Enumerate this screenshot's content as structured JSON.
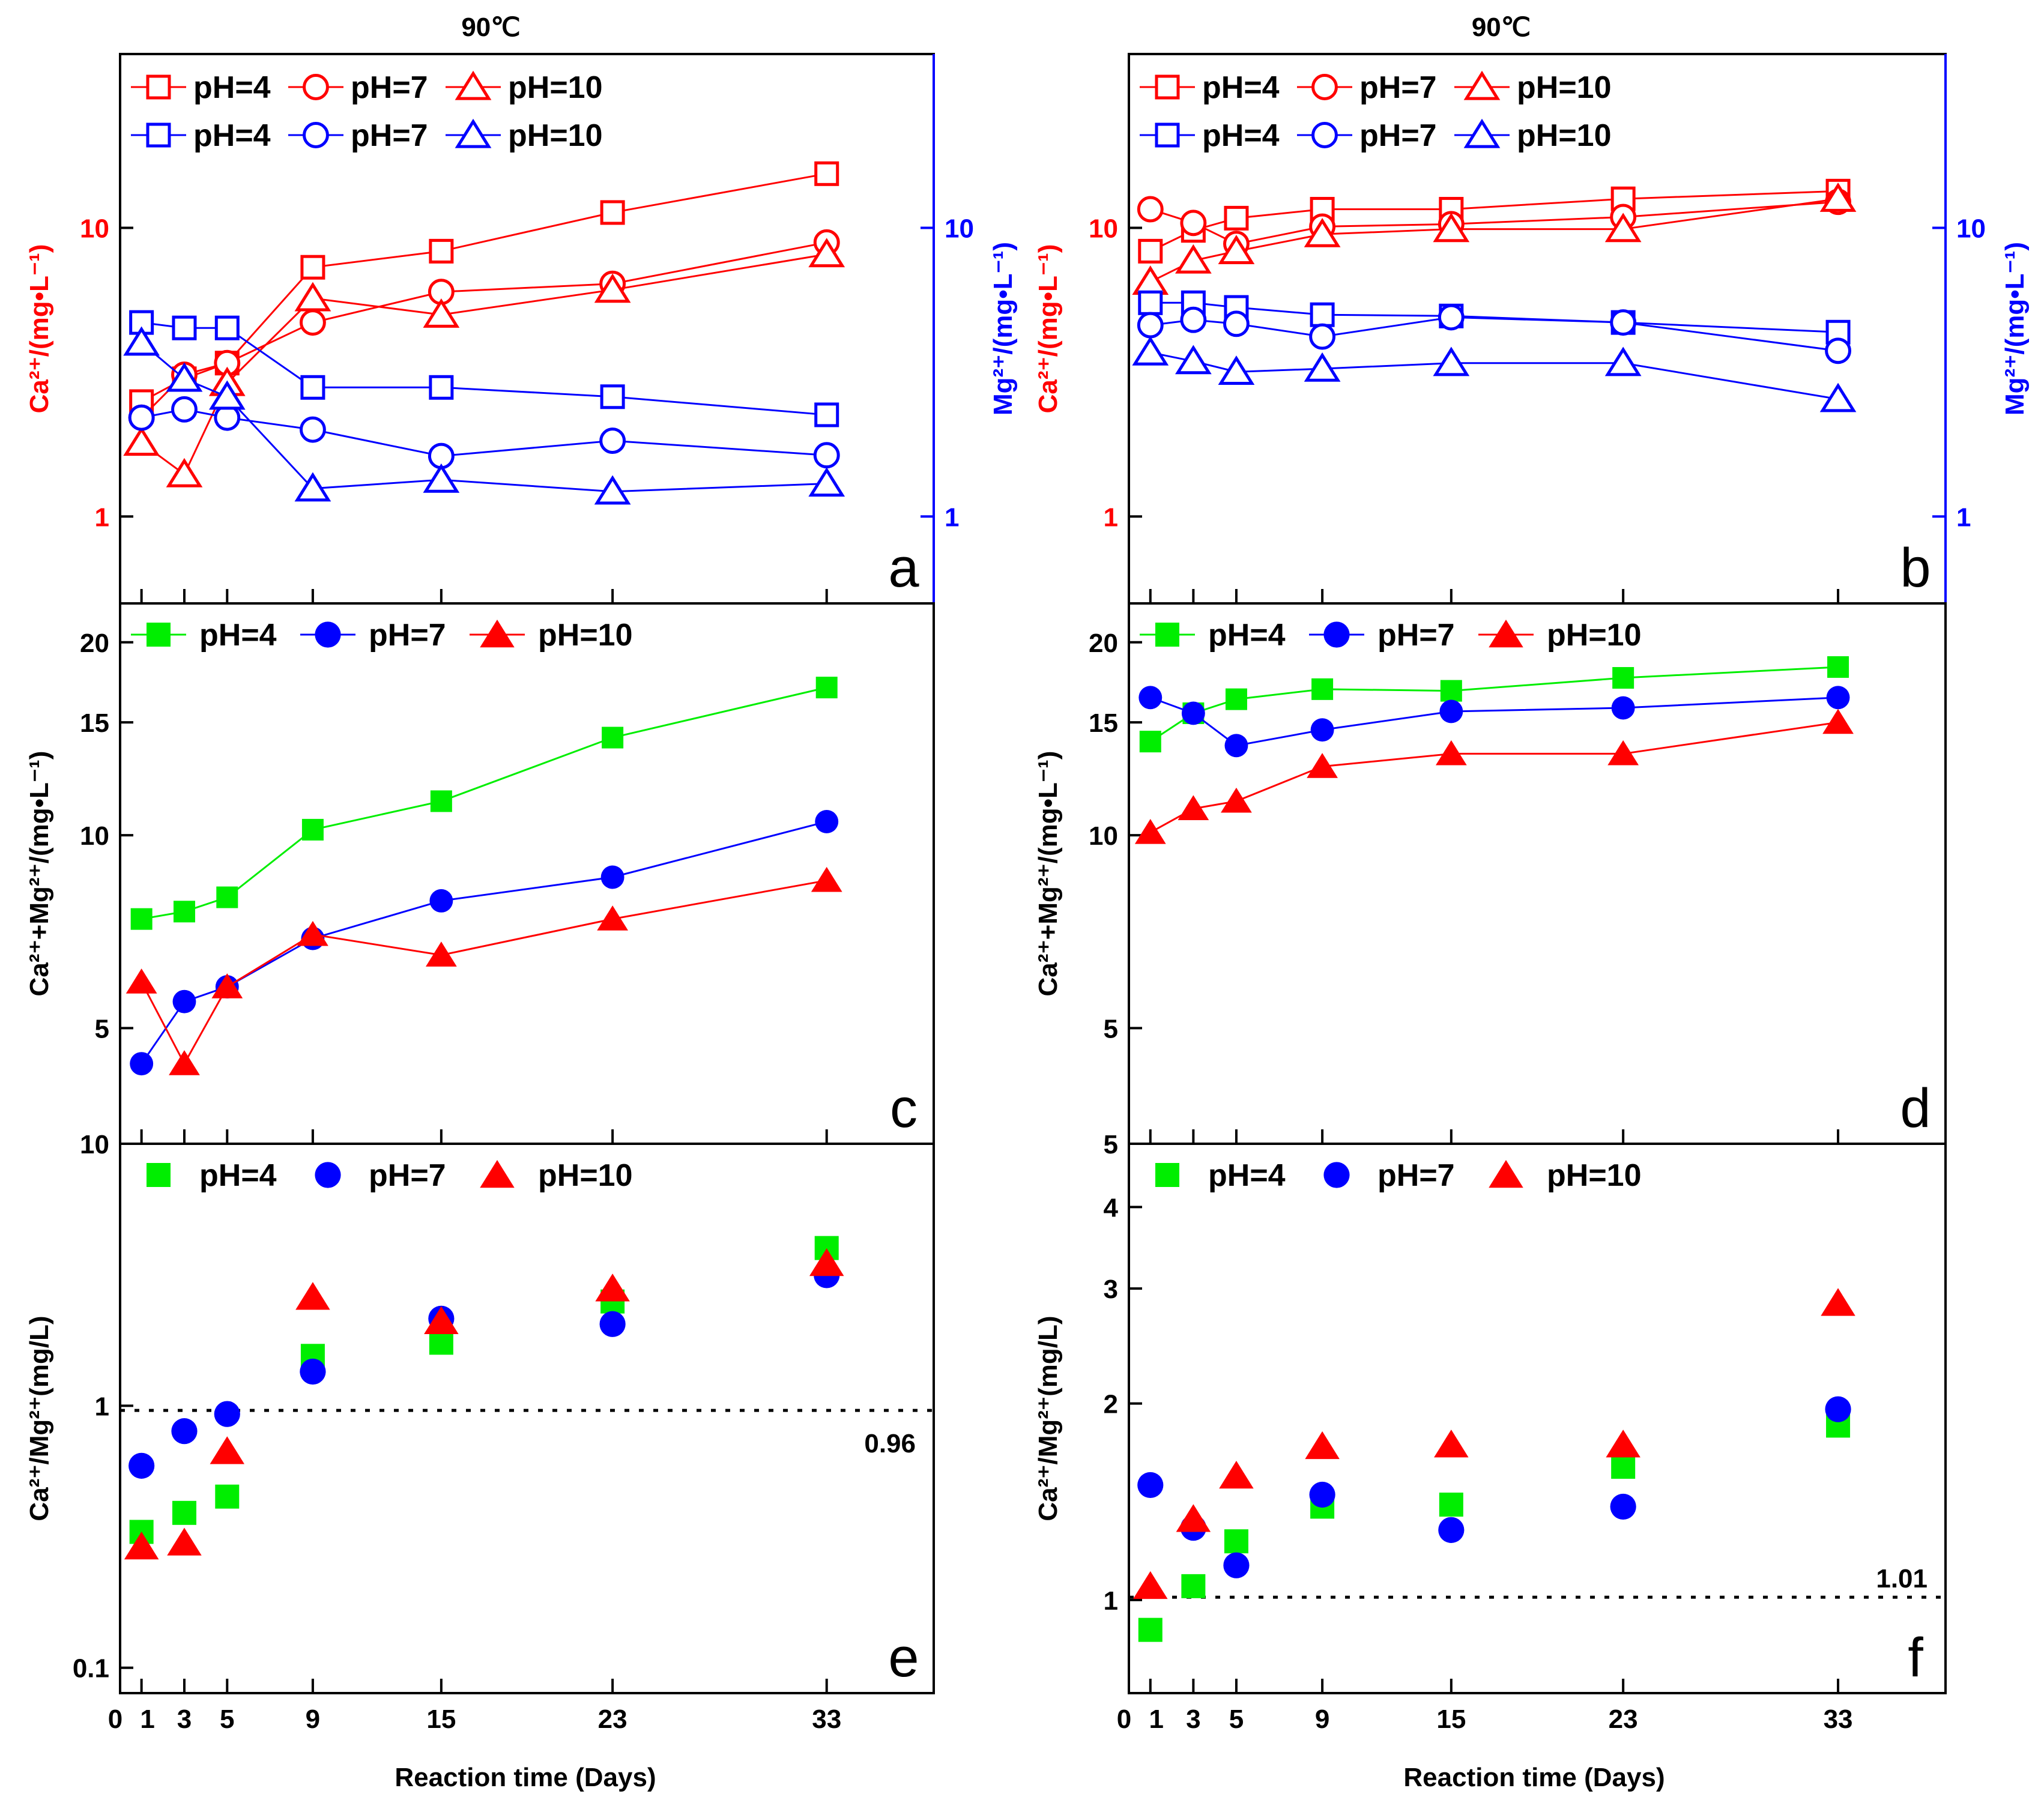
{
  "figure": {
    "x_axis": {
      "label": "Reaction time (Days)",
      "tick_labels": [
        "0",
        "1",
        "3",
        "5",
        "9",
        "15",
        "23",
        "33"
      ]
    },
    "colors": {
      "red": "#ff0000",
      "blue": "#0000ff",
      "green": "#00ee00",
      "black": "#000000"
    }
  },
  "chart_data": [
    {
      "id": "a",
      "type": "line",
      "title": "90℃",
      "panel_label": "a",
      "xlim": [
        0,
        38
      ],
      "ylim_log": [
        0.5,
        40
      ],
      "y2lim_log": [
        0.5,
        40
      ],
      "ylabel_left": "Ca²⁺/(mg•L⁻¹)",
      "ylabel_right": "Mg²⁺/(mg•L⁻¹)",
      "y_ticks": [
        "1",
        "10"
      ],
      "legend": [
        {
          "label": "pH=4",
          "marker": "square",
          "color": "#ff0000"
        },
        {
          "label": "pH=7",
          "marker": "circle",
          "color": "#ff0000"
        },
        {
          "label": "pH=10",
          "marker": "triangle",
          "color": "#ff0000"
        },
        {
          "label": "pH=4",
          "marker": "square",
          "color": "#0000ff"
        },
        {
          "label": "pH=7",
          "marker": "circle",
          "color": "#0000ff"
        },
        {
          "label": "pH=10",
          "marker": "triangle",
          "color": "#0000ff"
        }
      ],
      "x": [
        1,
        3,
        5,
        9,
        15,
        23,
        33
      ],
      "series": [
        {
          "name": "Ca pH=4",
          "axis": "left",
          "color": "#ff0000",
          "marker": "square",
          "filled": false,
          "values": [
            2.5,
            3.0,
            3.4,
            7.3,
            8.3,
            11.3,
            15.4
          ]
        },
        {
          "name": "Ca pH=7",
          "axis": "left",
          "color": "#ff0000",
          "marker": "circle",
          "filled": false,
          "values": [
            2.2,
            3.1,
            3.4,
            4.7,
            6.0,
            6.4,
            8.9
          ]
        },
        {
          "name": "Ca pH=10",
          "axis": "left",
          "color": "#ff0000",
          "marker": "triangle",
          "filled": false,
          "values": [
            1.8,
            1.4,
            2.9,
            5.7,
            5.0,
            6.1,
            8.1
          ]
        },
        {
          "name": "Mg pH=4",
          "axis": "right",
          "color": "#0000ff",
          "marker": "square",
          "filled": false,
          "values": [
            4.7,
            4.5,
            4.5,
            2.8,
            2.8,
            2.6,
            2.25
          ]
        },
        {
          "name": "Mg pH=7",
          "axis": "right",
          "color": "#0000ff",
          "marker": "circle",
          "filled": false,
          "values": [
            2.2,
            2.35,
            2.2,
            2.0,
            1.62,
            1.83,
            1.63
          ]
        },
        {
          "name": "Mg pH=10",
          "axis": "right",
          "color": "#0000ff",
          "marker": "triangle",
          "filled": false,
          "values": [
            4.0,
            3.0,
            2.6,
            1.25,
            1.34,
            1.22,
            1.3
          ]
        }
      ]
    },
    {
      "id": "b",
      "type": "line",
      "title": "90℃",
      "panel_label": "b",
      "xlim": [
        0,
        38
      ],
      "ylim_log": [
        0.5,
        40
      ],
      "y2lim_log": [
        0.5,
        40
      ],
      "ylabel_left": "Ca²⁺/(mg•L⁻¹)",
      "ylabel_right": "Mg²⁺/(mg•L⁻¹)",
      "y_ticks": [
        "1",
        "10"
      ],
      "legend": [
        {
          "label": "pH=4",
          "marker": "square",
          "color": "#ff0000"
        },
        {
          "label": "pH=7",
          "marker": "circle",
          "color": "#ff0000"
        },
        {
          "label": "pH=10",
          "marker": "triangle",
          "color": "#ff0000"
        },
        {
          "label": "pH=4",
          "marker": "square",
          "color": "#0000ff"
        },
        {
          "label": "pH=7",
          "marker": "circle",
          "color": "#0000ff"
        },
        {
          "label": "pH=10",
          "marker": "triangle",
          "color": "#0000ff"
        }
      ],
      "x": [
        1,
        3,
        5,
        9,
        15,
        23,
        33
      ],
      "series": [
        {
          "name": "Ca pH=4",
          "axis": "left",
          "color": "#ff0000",
          "marker": "square",
          "filled": false,
          "values": [
            8.3,
            9.8,
            10.8,
            11.6,
            11.6,
            12.6,
            13.4
          ]
        },
        {
          "name": "Ca pH=7",
          "axis": "left",
          "color": "#ff0000",
          "marker": "circle",
          "filled": false,
          "values": [
            11.6,
            10.4,
            8.8,
            10.1,
            10.3,
            10.9,
            12.3
          ]
        },
        {
          "name": "Ca pH=10",
          "axis": "left",
          "color": "#ff0000",
          "marker": "triangle",
          "filled": false,
          "values": [
            6.5,
            7.7,
            8.3,
            9.5,
            9.9,
            9.9,
            12.6
          ]
        },
        {
          "name": "Mg pH=4",
          "axis": "right",
          "color": "#0000ff",
          "marker": "square",
          "filled": false,
          "values": [
            5.5,
            5.5,
            5.3,
            5.0,
            4.95,
            4.7,
            4.35
          ]
        },
        {
          "name": "Mg pH=7",
          "axis": "right",
          "color": "#0000ff",
          "marker": "circle",
          "filled": false,
          "values": [
            4.6,
            4.8,
            4.65,
            4.2,
            4.9,
            4.7,
            3.75
          ]
        },
        {
          "name": "Mg pH=10",
          "axis": "right",
          "color": "#0000ff",
          "marker": "triangle",
          "filled": false,
          "values": [
            3.7,
            3.45,
            3.17,
            3.25,
            3.4,
            3.4,
            2.55
          ]
        }
      ]
    },
    {
      "id": "c",
      "type": "line",
      "panel_label": "c",
      "xlim": [
        0,
        38
      ],
      "ylim_log": [
        3.3,
        23
      ],
      "ylabel_left": "Ca²⁺+Mg²⁺/(mg•L⁻¹)",
      "y_ticks": [
        "5",
        "10",
        "15",
        "20"
      ],
      "y_bottom_label": "10",
      "legend": [
        {
          "label": "pH=4",
          "marker": "square",
          "color": "#00ee00"
        },
        {
          "label": "pH=7",
          "marker": "circle",
          "color": "#0000ff"
        },
        {
          "label": "pH=10",
          "marker": "triangle",
          "color": "#ff0000"
        }
      ],
      "x": [
        1,
        3,
        5,
        9,
        15,
        23,
        33
      ],
      "series": [
        {
          "name": "pH=4",
          "color": "#00ee00",
          "marker": "square",
          "filled": true,
          "values": [
            7.4,
            7.6,
            8.0,
            10.2,
            11.3,
            14.2,
            17.0
          ]
        },
        {
          "name": "pH=7",
          "color": "#0000ff",
          "marker": "circle",
          "filled": true,
          "values": [
            4.4,
            5.5,
            5.8,
            6.9,
            7.9,
            8.6,
            10.5
          ]
        },
        {
          "name": "pH=10",
          "color": "#ff0000",
          "marker": "triangle",
          "filled": true,
          "values": [
            5.9,
            4.4,
            5.8,
            7.0,
            6.5,
            7.4,
            8.5
          ]
        }
      ]
    },
    {
      "id": "d",
      "type": "line",
      "panel_label": "d",
      "xlim": [
        0,
        38
      ],
      "ylim_log": [
        3.3,
        23
      ],
      "ylabel_left": "Ca²⁺+Mg²⁺/(mg•L⁻¹)",
      "y_ticks": [
        "5",
        "10",
        "15",
        "20"
      ],
      "y_bottom_label": "5",
      "legend": [
        {
          "label": "pH=4",
          "marker": "square",
          "color": "#00ee00"
        },
        {
          "label": "pH=7",
          "marker": "circle",
          "color": "#0000ff"
        },
        {
          "label": "pH=10",
          "marker": "triangle",
          "color": "#ff0000"
        }
      ],
      "x": [
        1,
        3,
        5,
        9,
        15,
        23,
        33
      ],
      "series": [
        {
          "name": "pH=4",
          "color": "#00ee00",
          "marker": "square",
          "filled": true,
          "values": [
            14.0,
            15.5,
            16.3,
            16.9,
            16.8,
            17.6,
            18.3
          ]
        },
        {
          "name": "pH=7",
          "color": "#0000ff",
          "marker": "circle",
          "filled": true,
          "values": [
            16.4,
            15.5,
            13.8,
            14.6,
            15.6,
            15.8,
            16.4
          ]
        },
        {
          "name": "pH=10",
          "color": "#ff0000",
          "marker": "triangle",
          "filled": true,
          "values": [
            10.1,
            11.0,
            11.3,
            12.8,
            13.4,
            13.4,
            15.0
          ]
        }
      ]
    },
    {
      "id": "e",
      "type": "scatter",
      "panel_label": "e",
      "xlim": [
        0,
        38
      ],
      "ylim_log": [
        0.08,
        10
      ],
      "ylabel_left": "Ca²⁺/Mg²⁺(mg/L)",
      "y_ticks": [
        "0.1",
        "1"
      ],
      "reference_line": {
        "value": 0.96,
        "label": "0.96"
      },
      "legend": [
        {
          "label": "pH=4",
          "marker": "square",
          "color": "#00ee00"
        },
        {
          "label": "pH=7",
          "marker": "circle",
          "color": "#0000ff"
        },
        {
          "label": "pH=10",
          "marker": "triangle",
          "color": "#ff0000"
        }
      ],
      "x": [
        1,
        3,
        5,
        9,
        15,
        23,
        33
      ],
      "series": [
        {
          "name": "pH=4",
          "color": "#00ee00",
          "marker": "square",
          "filled": true,
          "values": [
            0.33,
            0.39,
            0.45,
            1.55,
            1.74,
            2.5,
            4.0
          ]
        },
        {
          "name": "pH=7",
          "color": "#0000ff",
          "marker": "circle",
          "filled": true,
          "values": [
            0.59,
            0.8,
            0.93,
            1.35,
            2.15,
            2.05,
            3.15
          ]
        },
        {
          "name": "pH=10",
          "color": "#ff0000",
          "marker": "triangle",
          "filled": true,
          "values": [
            0.29,
            0.3,
            0.67,
            2.6,
            2.1,
            2.8,
            3.5
          ]
        }
      ]
    },
    {
      "id": "f",
      "type": "scatter",
      "panel_label": "f",
      "xlim": [
        0,
        38
      ],
      "ylim_log": [
        0.72,
        5
      ],
      "ylabel_left": "Ca²⁺/Mg²⁺(mg/L)",
      "y_ticks": [
        "1",
        "2",
        "3",
        "4"
      ],
      "reference_line": {
        "value": 1.01,
        "label": "1.01"
      },
      "legend": [
        {
          "label": "pH=4",
          "marker": "square",
          "color": "#00ee00"
        },
        {
          "label": "pH=7",
          "marker": "circle",
          "color": "#0000ff"
        },
        {
          "label": "pH=10",
          "marker": "triangle",
          "color": "#ff0000"
        }
      ],
      "x": [
        1,
        3,
        5,
        9,
        15,
        23,
        33
      ],
      "series": [
        {
          "name": "pH=4",
          "color": "#00ee00",
          "marker": "square",
          "filled": true,
          "values": [
            0.9,
            1.05,
            1.23,
            1.39,
            1.4,
            1.6,
            1.85
          ]
        },
        {
          "name": "pH=7",
          "color": "#0000ff",
          "marker": "circle",
          "filled": true,
          "values": [
            1.5,
            1.29,
            1.13,
            1.45,
            1.28,
            1.39,
            1.96
          ]
        },
        {
          "name": "pH=10",
          "color": "#ff0000",
          "marker": "triangle",
          "filled": true,
          "values": [
            1.05,
            1.33,
            1.55,
            1.72,
            1.73,
            1.73,
            2.85
          ]
        }
      ]
    }
  ]
}
